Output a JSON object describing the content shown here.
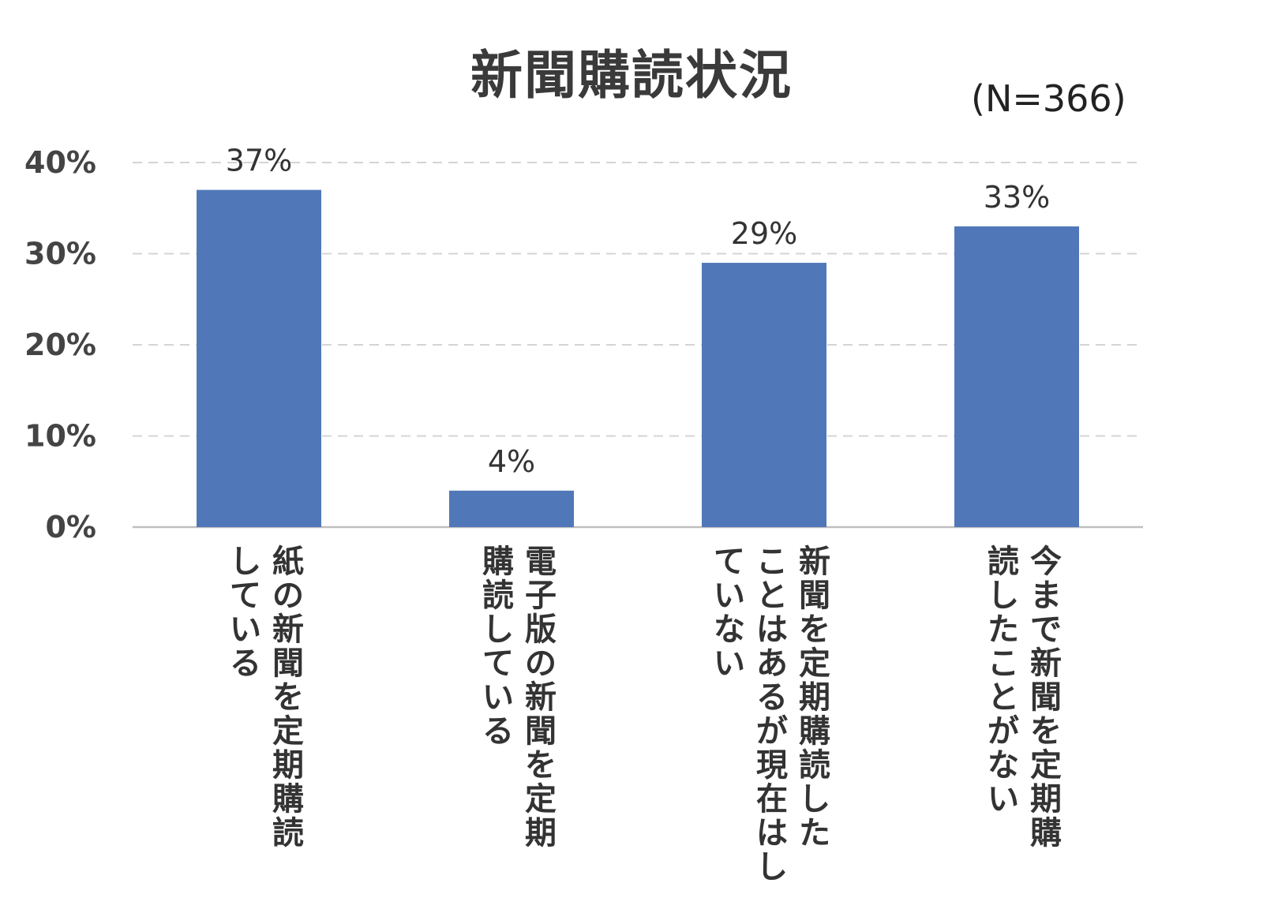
{
  "chart_data": {
    "type": "bar",
    "title": "新聞購読状況",
    "note": "(N=366)",
    "categories": [
      [
        "紙の新聞を定期購読",
        "している"
      ],
      [
        "電子版の新聞を定期",
        "購読している"
      ],
      [
        "新聞を定期購読した",
        "ことはあるが現在はし",
        "ていない"
      ],
      [
        "今まで新聞を定期購",
        "読したことがない"
      ]
    ],
    "values": [
      37,
      4,
      29,
      33
    ],
    "data_labels": [
      "37%",
      "4%",
      "29%",
      "33%"
    ],
    "yticks": [
      "0%",
      "10%",
      "20%",
      "30%",
      "40%"
    ],
    "ylim": [
      0,
      40
    ],
    "xlabel": "",
    "ylabel": "",
    "bar_color": "#5078b9",
    "grid": true
  }
}
